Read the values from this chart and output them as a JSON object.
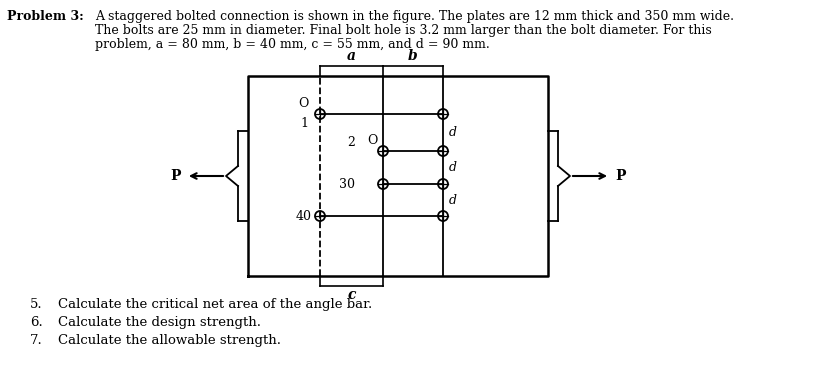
{
  "title_label": "Problem 3:",
  "desc_line1": "A staggered bolted connection is shown in the figure. The plates are 12 mm thick and 350 mm wide.",
  "desc_line2": "The bolts are 25 mm in diameter. Final bolt hole is 3.2 mm larger than the bolt diameter. For this",
  "desc_line3": "problem, a = 80 mm, b = 40 mm, c = 55 mm, and d = 90 mm.",
  "items": [
    "Calculate the critical net area of the angle bar.",
    "Calculate the design strength.",
    "Calculate the allowable strength."
  ],
  "item_numbers": [
    "5.",
    "6.",
    "7."
  ],
  "bg_color": "#ffffff",
  "line_color": "#000000",
  "text_color": "#000000",
  "fig_width": 8.3,
  "fig_height": 3.66
}
